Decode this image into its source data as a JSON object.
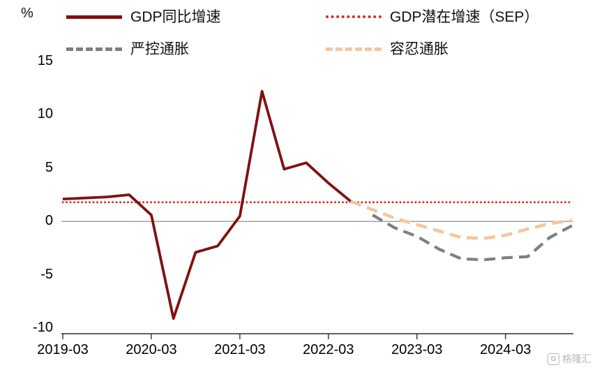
{
  "chart_data": {
    "type": "line",
    "title": "",
    "xlabel": "",
    "ylabel": "%",
    "ylim": [
      -10,
      15
    ],
    "yticks": [
      15,
      10,
      5,
      0,
      -5,
      -10
    ],
    "zero_line": true,
    "grid": false,
    "legend_position": "top",
    "x": [
      "2019-03",
      "2019-06",
      "2019-09",
      "2019-12",
      "2020-03",
      "2020-06",
      "2020-09",
      "2020-12",
      "2021-03",
      "2021-06",
      "2021-09",
      "2021-12",
      "2022-03",
      "2022-06",
      "2022-09",
      "2022-12",
      "2023-03",
      "2023-06",
      "2023-09",
      "2023-12",
      "2024-03",
      "2024-06",
      "2024-09",
      "2024-12"
    ],
    "xticks": [
      "2019-03",
      "2020-03",
      "2021-03",
      "2022-03",
      "2023-03",
      "2024-03"
    ],
    "xtick_indices": [
      0,
      4,
      8,
      12,
      16,
      20
    ],
    "series": [
      {
        "name": "GDP同比增速",
        "color": "#801110",
        "dash": "solid",
        "width": 3.8,
        "z": 4,
        "values": [
          2.1,
          2.2,
          2.3,
          2.5,
          0.6,
          -9.1,
          -2.9,
          -2.3,
          0.5,
          12.2,
          4.9,
          5.5,
          3.6,
          1.9,
          null,
          null,
          null,
          null,
          null,
          null,
          null,
          null,
          null,
          null
        ]
      },
      {
        "name": "GDP潜在增速（SEP）",
        "color": "#e1251b",
        "dash": "dotted",
        "width": 2.8,
        "z": 1,
        "values": [
          1.8,
          1.8,
          1.8,
          1.8,
          1.8,
          1.8,
          1.8,
          1.8,
          1.8,
          1.8,
          1.8,
          1.8,
          1.8,
          1.8,
          1.8,
          1.8,
          1.8,
          1.8,
          1.8,
          1.8,
          1.8,
          1.8,
          1.8,
          1.8
        ]
      },
      {
        "name": "严控通胀",
        "color": "#7f7f7f",
        "dash": "dashed",
        "width": 4.2,
        "z": 3,
        "values": [
          null,
          null,
          null,
          null,
          null,
          null,
          null,
          null,
          null,
          null,
          null,
          null,
          null,
          null,
          0.6,
          -0.6,
          -1.4,
          -2.6,
          -3.5,
          -3.6,
          -3.4,
          -3.3,
          -1.5,
          -0.4
        ]
      },
      {
        "name": "容忍通胀",
        "color": "#f5c6a0",
        "dash": "dashed",
        "width": 4.6,
        "z": 2,
        "values": [
          null,
          null,
          null,
          null,
          null,
          null,
          null,
          null,
          null,
          null,
          null,
          null,
          null,
          1.9,
          1.1,
          0.3,
          -0.3,
          -0.9,
          -1.5,
          -1.6,
          -1.3,
          -0.7,
          -0.2,
          0.1
        ]
      }
    ]
  },
  "watermark": {
    "text": "格隆汇",
    "icon": "G"
  }
}
